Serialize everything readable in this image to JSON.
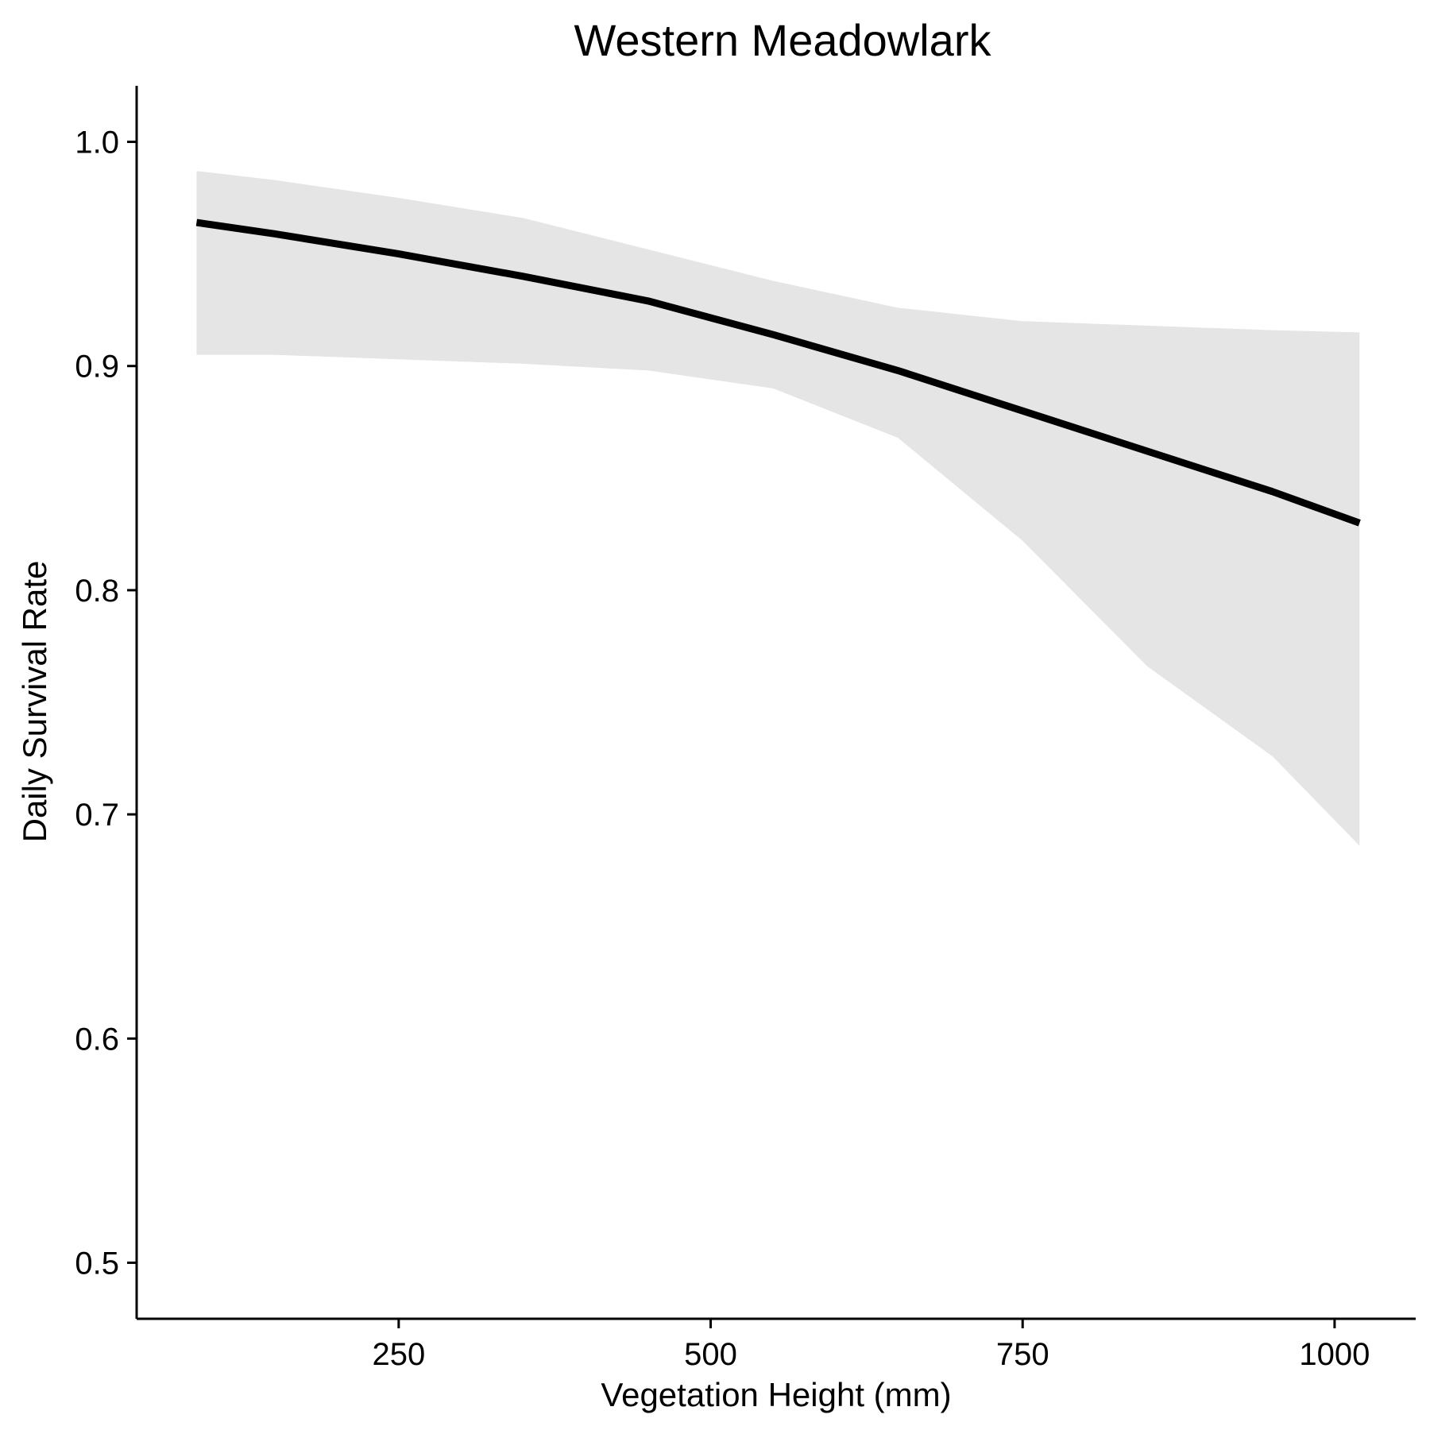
{
  "chart_data": {
    "type": "line",
    "title": "Western Meadowlark",
    "xlabel": "Vegetation Height (mm)",
    "ylabel": "Daily Survival Rate",
    "xlim": [
      40,
      1065
    ],
    "ylim": [
      0.475,
      1.025
    ],
    "x_ticks": [
      250,
      500,
      750,
      1000
    ],
    "x_tick_labels": [
      "250",
      "500",
      "750",
      "1000"
    ],
    "y_ticks": [
      0.5,
      0.6,
      0.7,
      0.8,
      0.9,
      1.0
    ],
    "y_tick_labels": [
      "0.5",
      "0.6",
      "0.7",
      "0.8",
      "0.9",
      "1.0"
    ],
    "grid": false,
    "line_color": "#000000",
    "ribbon_color": "#e5e5e5",
    "series": [
      {
        "x": [
          88,
          150,
          250,
          350,
          450,
          550,
          650,
          750,
          850,
          950,
          1020
        ],
        "y": [
          0.964,
          0.959,
          0.95,
          0.94,
          0.929,
          0.914,
          0.898,
          0.88,
          0.862,
          0.844,
          0.83
        ],
        "lower": [
          0.905,
          0.905,
          0.903,
          0.901,
          0.898,
          0.89,
          0.868,
          0.822,
          0.766,
          0.726,
          0.686
        ],
        "upper": [
          0.987,
          0.983,
          0.975,
          0.966,
          0.952,
          0.938,
          0.926,
          0.92,
          0.918,
          0.916,
          0.915
        ]
      }
    ]
  }
}
